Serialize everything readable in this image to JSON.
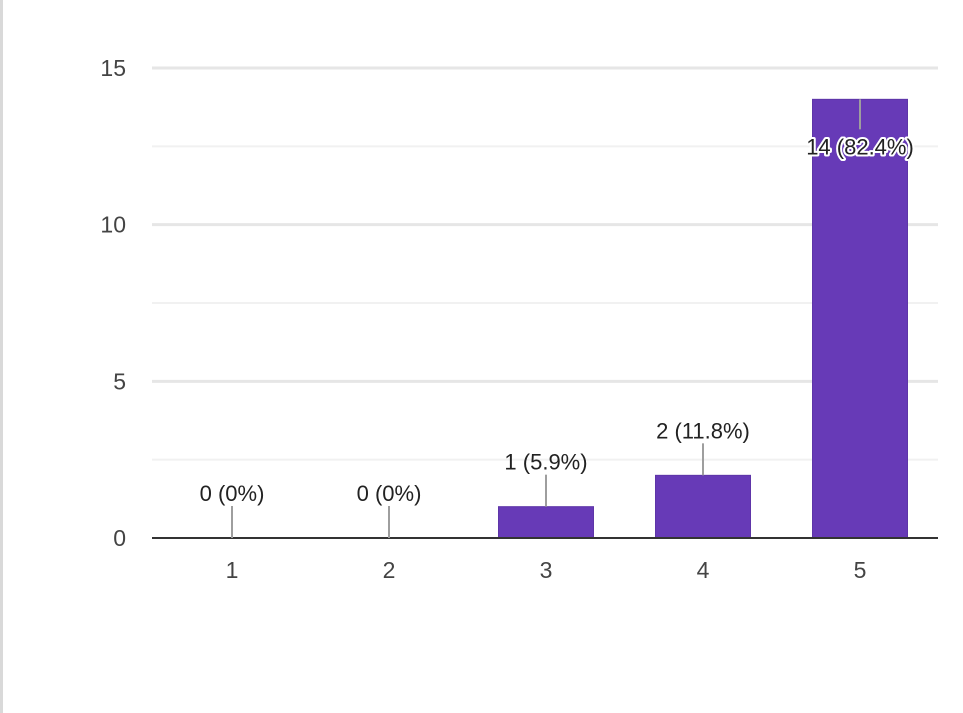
{
  "chart_data": {
    "type": "bar",
    "title": "",
    "xlabel": "",
    "ylabel": "",
    "categories": [
      "1",
      "2",
      "3",
      "4",
      "5"
    ],
    "values": [
      0,
      0,
      1,
      2,
      14
    ],
    "data_labels": [
      "0 (0%)",
      "0 (0%)",
      "1 (5.9%)",
      "2 (11.8%)",
      "14 (82.4%)"
    ],
    "ylim": [
      0,
      15
    ],
    "yticks": [
      0,
      5,
      10,
      15
    ],
    "y_tick_labels": [
      "0",
      "5",
      "10",
      "15"
    ],
    "grid": true,
    "bar_color": "#673ab7"
  }
}
